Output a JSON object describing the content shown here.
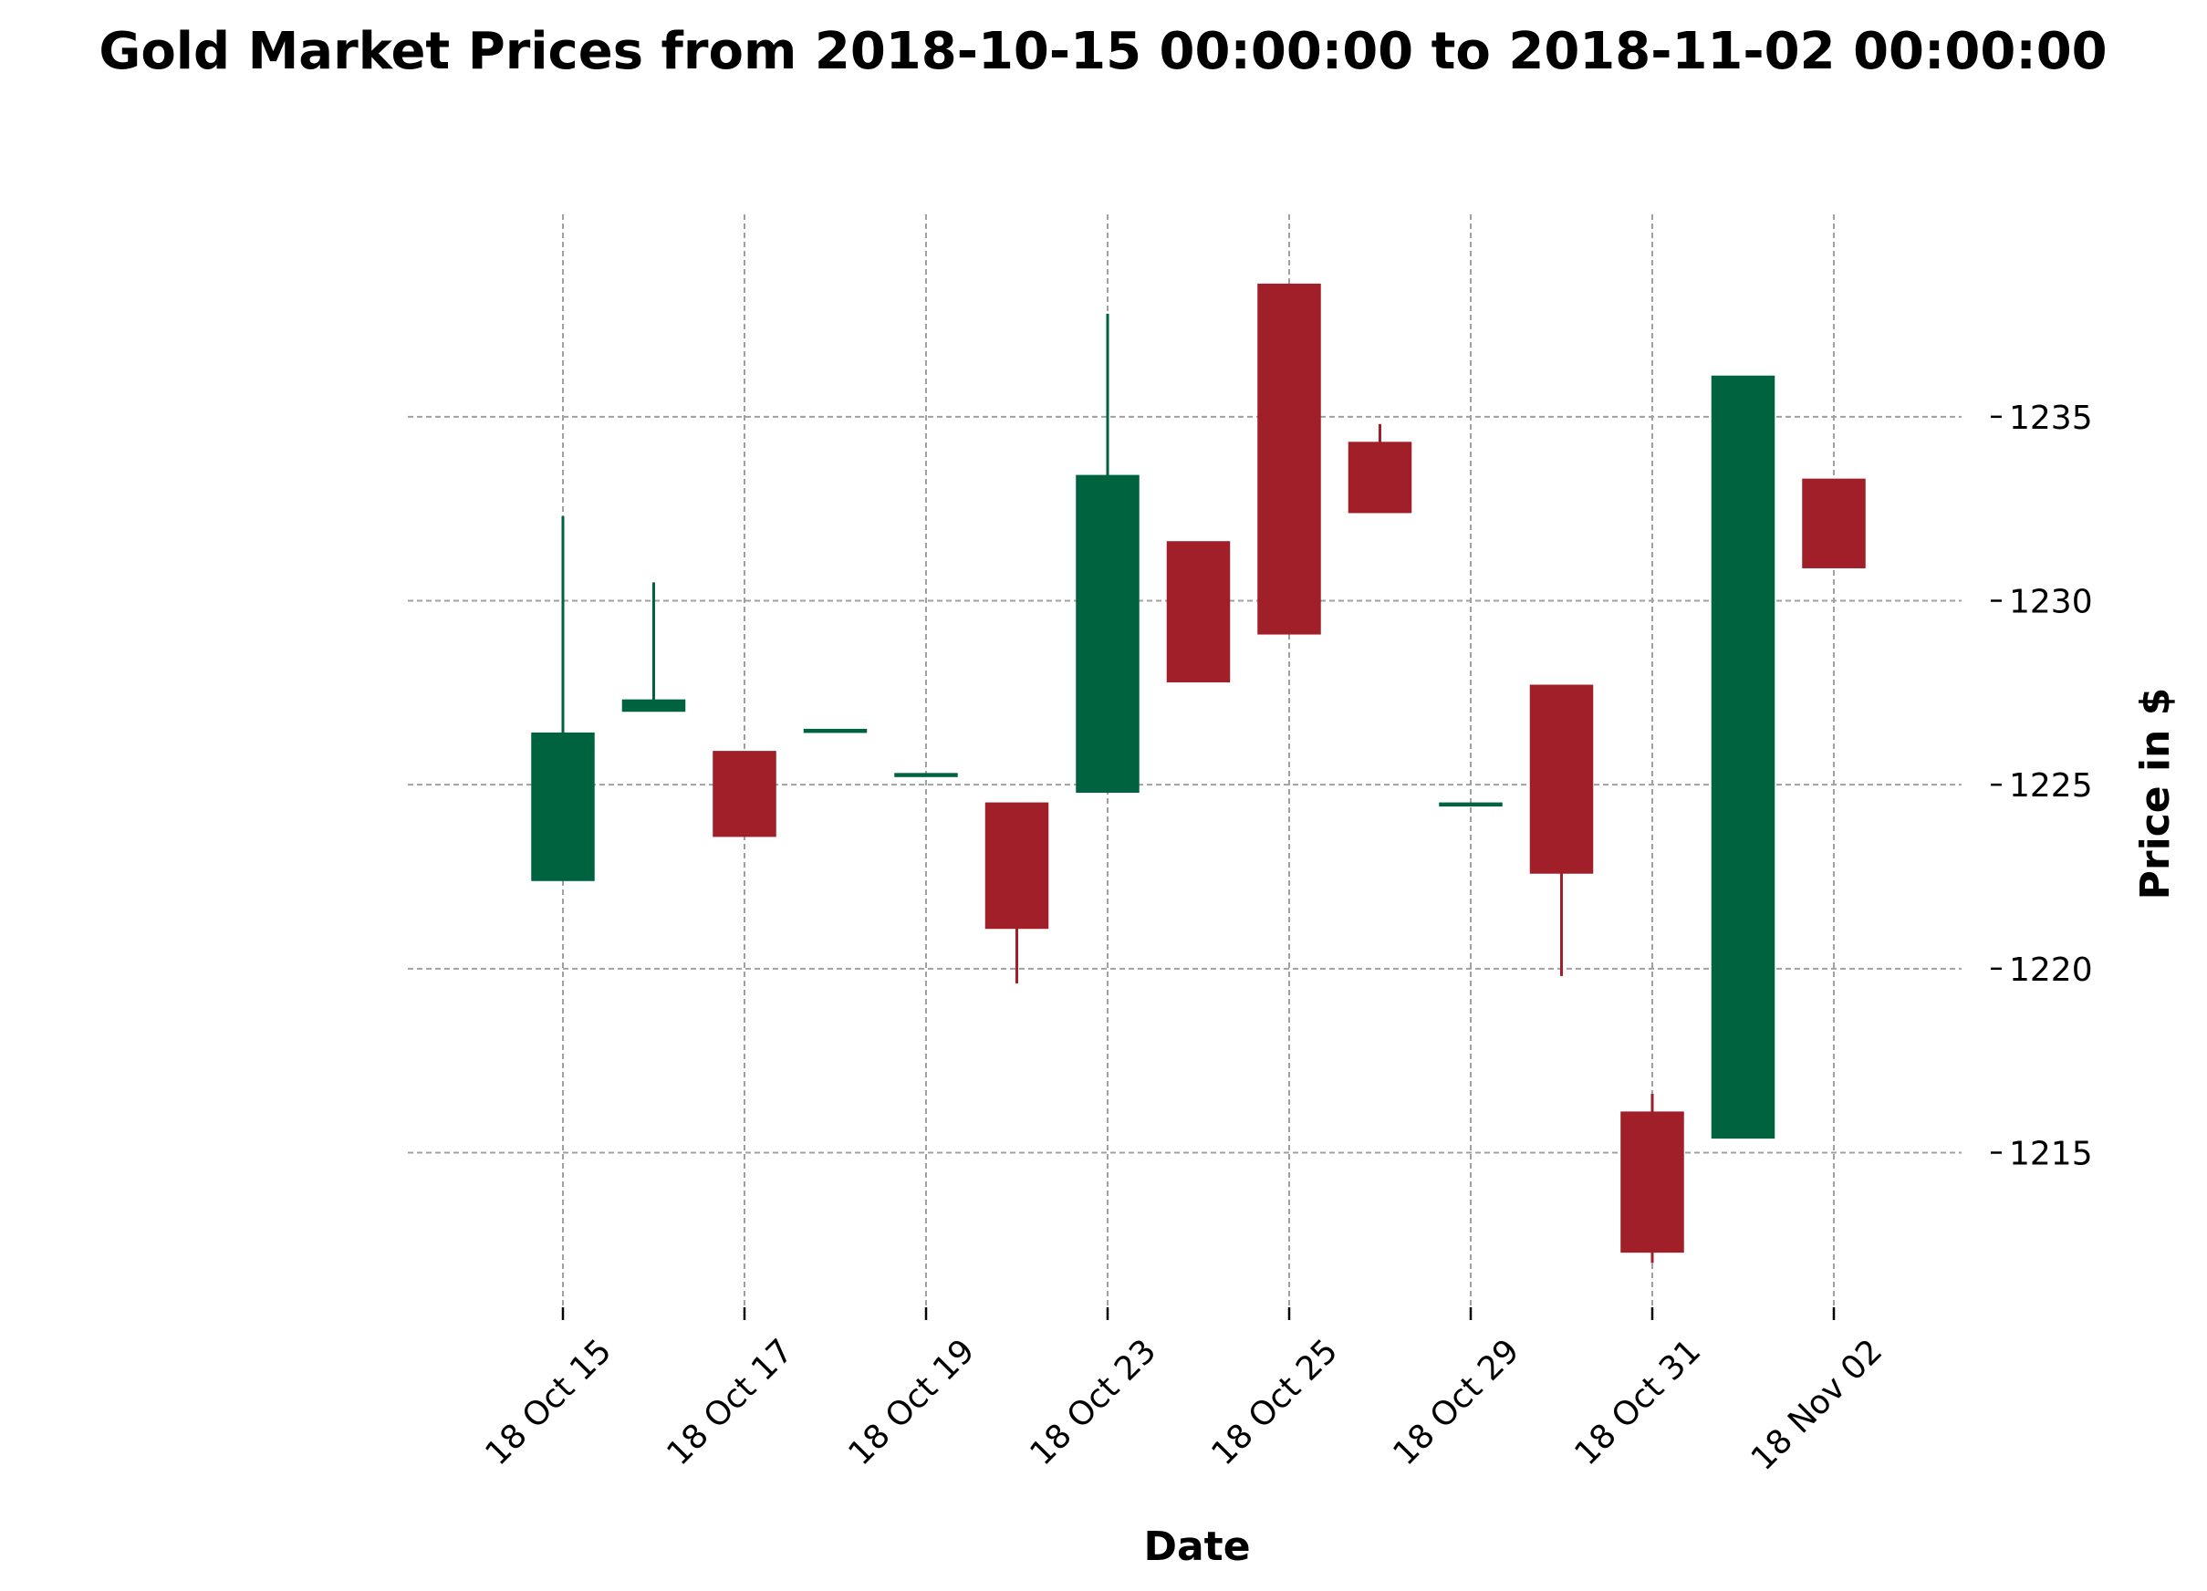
{
  "chart_data": {
    "type": "candlestick",
    "title": "Gold Market Prices from 2018-10-15 00:00:00 to 2018-11-02 00:00:00",
    "xlabel": "Date",
    "ylabel": "Price in $",
    "ylim": [
      1210.5,
      1240.5
    ],
    "yticks": [
      1215,
      1220,
      1225,
      1230,
      1235
    ],
    "xtick_labels": [
      "18 Oct 15",
      "18 Oct 17",
      "18 Oct 19",
      "18 Oct 23",
      "18 Oct 25",
      "18 Oct 29",
      "18 Oct 31",
      "18 Nov 02"
    ],
    "grid": true,
    "up_color": "#006340",
    "down_color": "#a01f28",
    "candles": [
      {
        "date": "2018-10-15",
        "open": 1222.4,
        "high": 1232.3,
        "low": 1222.4,
        "close": 1226.4
      },
      {
        "date": "2018-10-16",
        "open": 1227.0,
        "high": 1230.5,
        "low": 1227.0,
        "close": 1227.3
      },
      {
        "date": "2018-10-17",
        "open": 1225.9,
        "high": 1225.9,
        "low": 1223.6,
        "close": 1223.6
      },
      {
        "date": "2018-10-18",
        "open": 1226.5,
        "high": 1226.5,
        "low": 1226.5,
        "close": 1226.5
      },
      {
        "date": "2018-10-19",
        "open": 1225.3,
        "high": 1225.3,
        "low": 1225.3,
        "close": 1225.3
      },
      {
        "date": "2018-10-22",
        "open": 1224.5,
        "high": 1224.5,
        "low": 1219.6,
        "close": 1221.1
      },
      {
        "date": "2018-10-23",
        "open": 1224.8,
        "high": 1237.8,
        "low": 1224.8,
        "close": 1233.4
      },
      {
        "date": "2018-10-24",
        "open": 1231.6,
        "high": 1231.6,
        "low": 1227.8,
        "close": 1227.8
      },
      {
        "date": "2018-10-25",
        "open": 1238.6,
        "high": 1238.6,
        "low": 1229.1,
        "close": 1229.1
      },
      {
        "date": "2018-10-26",
        "open": 1234.3,
        "high": 1234.8,
        "low": 1232.4,
        "close": 1232.4
      },
      {
        "date": "2018-10-29",
        "open": 1224.5,
        "high": 1224.5,
        "low": 1224.5,
        "close": 1224.5
      },
      {
        "date": "2018-10-30",
        "open": 1227.7,
        "high": 1227.7,
        "low": 1219.8,
        "close": 1222.6
      },
      {
        "date": "2018-10-31",
        "open": 1216.1,
        "high": 1216.6,
        "low": 1212.0,
        "close": 1212.3
      },
      {
        "date": "2018-11-01",
        "open": 1215.4,
        "high": 1236.1,
        "low": 1215.4,
        "close": 1236.1
      },
      {
        "date": "2018-11-02",
        "open": 1233.3,
        "high": 1233.3,
        "low": 1230.9,
        "close": 1230.9
      }
    ]
  }
}
